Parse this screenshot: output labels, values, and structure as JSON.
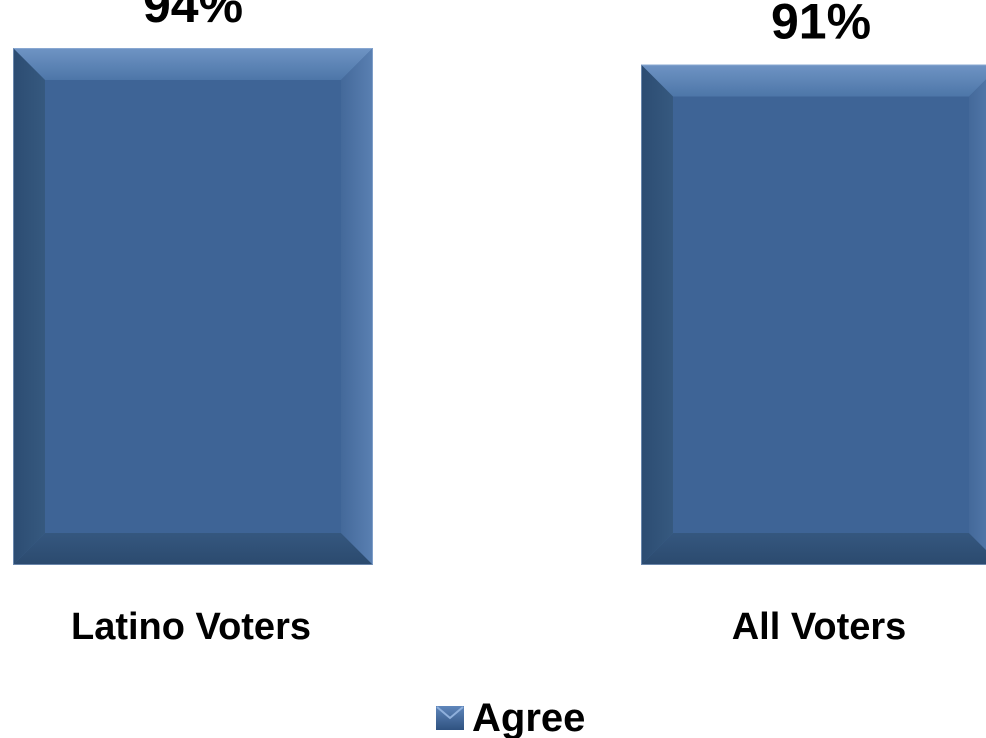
{
  "chart_data": {
    "type": "bar",
    "categories": [
      "Latino Voters",
      "All Voters"
    ],
    "series": [
      {
        "name": "Agree",
        "values": [
          94,
          91
        ],
        "color": "#3e6496"
      }
    ],
    "value_labels": [
      "94%",
      "91%"
    ],
    "ylim": [
      0,
      100
    ],
    "grid": false,
    "legend_position": "bottom"
  }
}
